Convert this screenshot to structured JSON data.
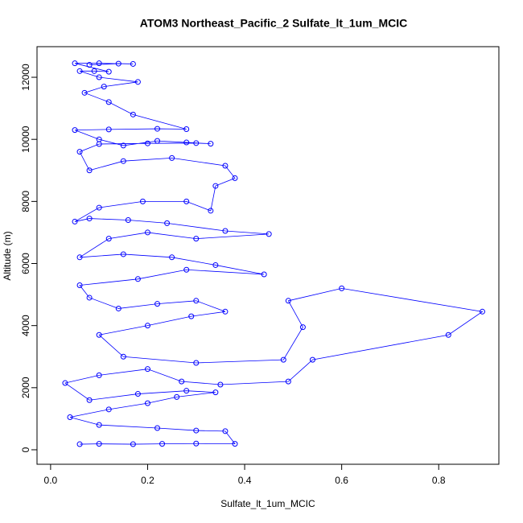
{
  "chart_data": {
    "type": "line",
    "title": "ATOM3 Northeast_Pacific_2 Sulfate_lt_1um_MCIC",
    "x_label": "Sulfate_lt_1um_MCIC",
    "y_label": "Altitude (m)",
    "color": "#0000ff",
    "x": [
      0.06,
      0.1,
      0.17,
      0.23,
      0.3,
      0.38,
      0.36,
      0.3,
      0.22,
      0.1,
      0.04,
      0.12,
      0.2,
      0.26,
      0.34,
      0.28,
      0.18,
      0.08,
      0.03,
      0.1,
      0.2,
      0.27,
      0.35,
      0.49,
      0.54,
      0.82,
      0.89,
      0.6,
      0.49,
      0.52,
      0.48,
      0.3,
      0.15,
      0.1,
      0.2,
      0.29,
      0.36,
      0.3,
      0.22,
      0.14,
      0.08,
      0.06,
      0.18,
      0.28,
      0.44,
      0.34,
      0.25,
      0.15,
      0.06,
      0.12,
      0.2,
      0.3,
      0.45,
      0.36,
      0.24,
      0.16,
      0.08,
      0.05,
      0.1,
      0.19,
      0.28,
      0.33,
      0.34,
      0.38,
      0.36,
      0.25,
      0.15,
      0.08,
      0.06,
      0.1,
      0.2,
      0.3,
      0.33,
      0.28,
      0.22,
      0.15,
      0.1,
      0.05,
      0.12,
      0.22,
      0.28,
      0.17,
      0.12,
      0.07,
      0.11,
      0.18,
      0.1,
      0.06,
      0.09,
      0.12,
      0.05,
      0.1,
      0.17,
      0.14,
      0.08
    ],
    "values": [
      180,
      190,
      180,
      190,
      200,
      190,
      600,
      620,
      700,
      800,
      1050,
      1300,
      1500,
      1700,
      1850,
      1900,
      1800,
      1600,
      2150,
      2400,
      2600,
      2200,
      2100,
      2200,
      2900,
      3700,
      4450,
      5200,
      4800,
      3950,
      2900,
      2800,
      3000,
      3700,
      4000,
      4300,
      4450,
      4800,
      4700,
      4550,
      4900,
      5300,
      5500,
      5800,
      5650,
      5950,
      6200,
      6300,
      6200,
      6800,
      7000,
      6800,
      6950,
      7050,
      7300,
      7400,
      7450,
      7350,
      7800,
      8000,
      8000,
      7700,
      8500,
      8750,
      9150,
      9400,
      9300,
      9000,
      9600,
      9850,
      9870,
      9880,
      9860,
      9900,
      9950,
      9800,
      10000,
      10300,
      10320,
      10340,
      10330,
      10800,
      11200,
      11500,
      11700,
      11850,
      12000,
      12200,
      12200,
      12180,
      12450,
      12450,
      12430,
      12440,
      12400
    ],
    "xlim": [
      -0.028,
      0.924
    ],
    "ylim": [
      -467,
      12986
    ],
    "xticks": [
      {
        "value": 0,
        "label": "0.0"
      },
      0.2,
      0.4,
      0.6,
      0.8
    ],
    "yticks": [
      0,
      2000,
      4000,
      6000,
      8000,
      10000,
      12000
    ]
  }
}
